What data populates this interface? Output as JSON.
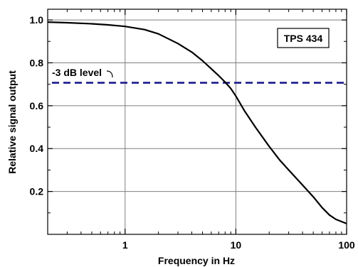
{
  "chart_data": {
    "type": "line",
    "xlabel": "Frequency in Hz",
    "ylabel": "Relative signal output",
    "xscale": "log",
    "xlim": [
      0.2,
      100
    ],
    "ylim": [
      0.0,
      1.05
    ],
    "grid": true,
    "x_ticks": [
      {
        "value": 1,
        "label": "1"
      },
      {
        "value": 10,
        "label": "10"
      },
      {
        "value": 100,
        "label": "100"
      }
    ],
    "y_ticks": [
      {
        "value": 0.2,
        "label": "0.2"
      },
      {
        "value": 0.4,
        "label": "0.4"
      },
      {
        "value": 0.6,
        "label": "0.6"
      },
      {
        "value": 0.8,
        "label": "0.8"
      },
      {
        "value": 1.0,
        "label": "1.0"
      }
    ],
    "series": [
      {
        "color": "#000000",
        "x": [
          0.2,
          0.3,
          0.5,
          0.7,
          1,
          1.5,
          2,
          3,
          4,
          5,
          6,
          7,
          8,
          9,
          10,
          12,
          15,
          20,
          25,
          30,
          40,
          50,
          60,
          70,
          80,
          100
        ],
        "y": [
          0.99,
          0.987,
          0.982,
          0.977,
          0.97,
          0.955,
          0.935,
          0.89,
          0.85,
          0.81,
          0.772,
          0.74,
          0.71,
          0.68,
          0.645,
          0.575,
          0.5,
          0.41,
          0.345,
          0.3,
          0.23,
          0.175,
          0.125,
          0.09,
          0.07,
          0.05
        ]
      }
    ],
    "reference_line": {
      "label": "-3 dB level",
      "y": 0.707,
      "color": "#1a1a8c",
      "style": "dashed"
    },
    "legend": {
      "text": "TPS 434",
      "position": "top-right"
    }
  }
}
